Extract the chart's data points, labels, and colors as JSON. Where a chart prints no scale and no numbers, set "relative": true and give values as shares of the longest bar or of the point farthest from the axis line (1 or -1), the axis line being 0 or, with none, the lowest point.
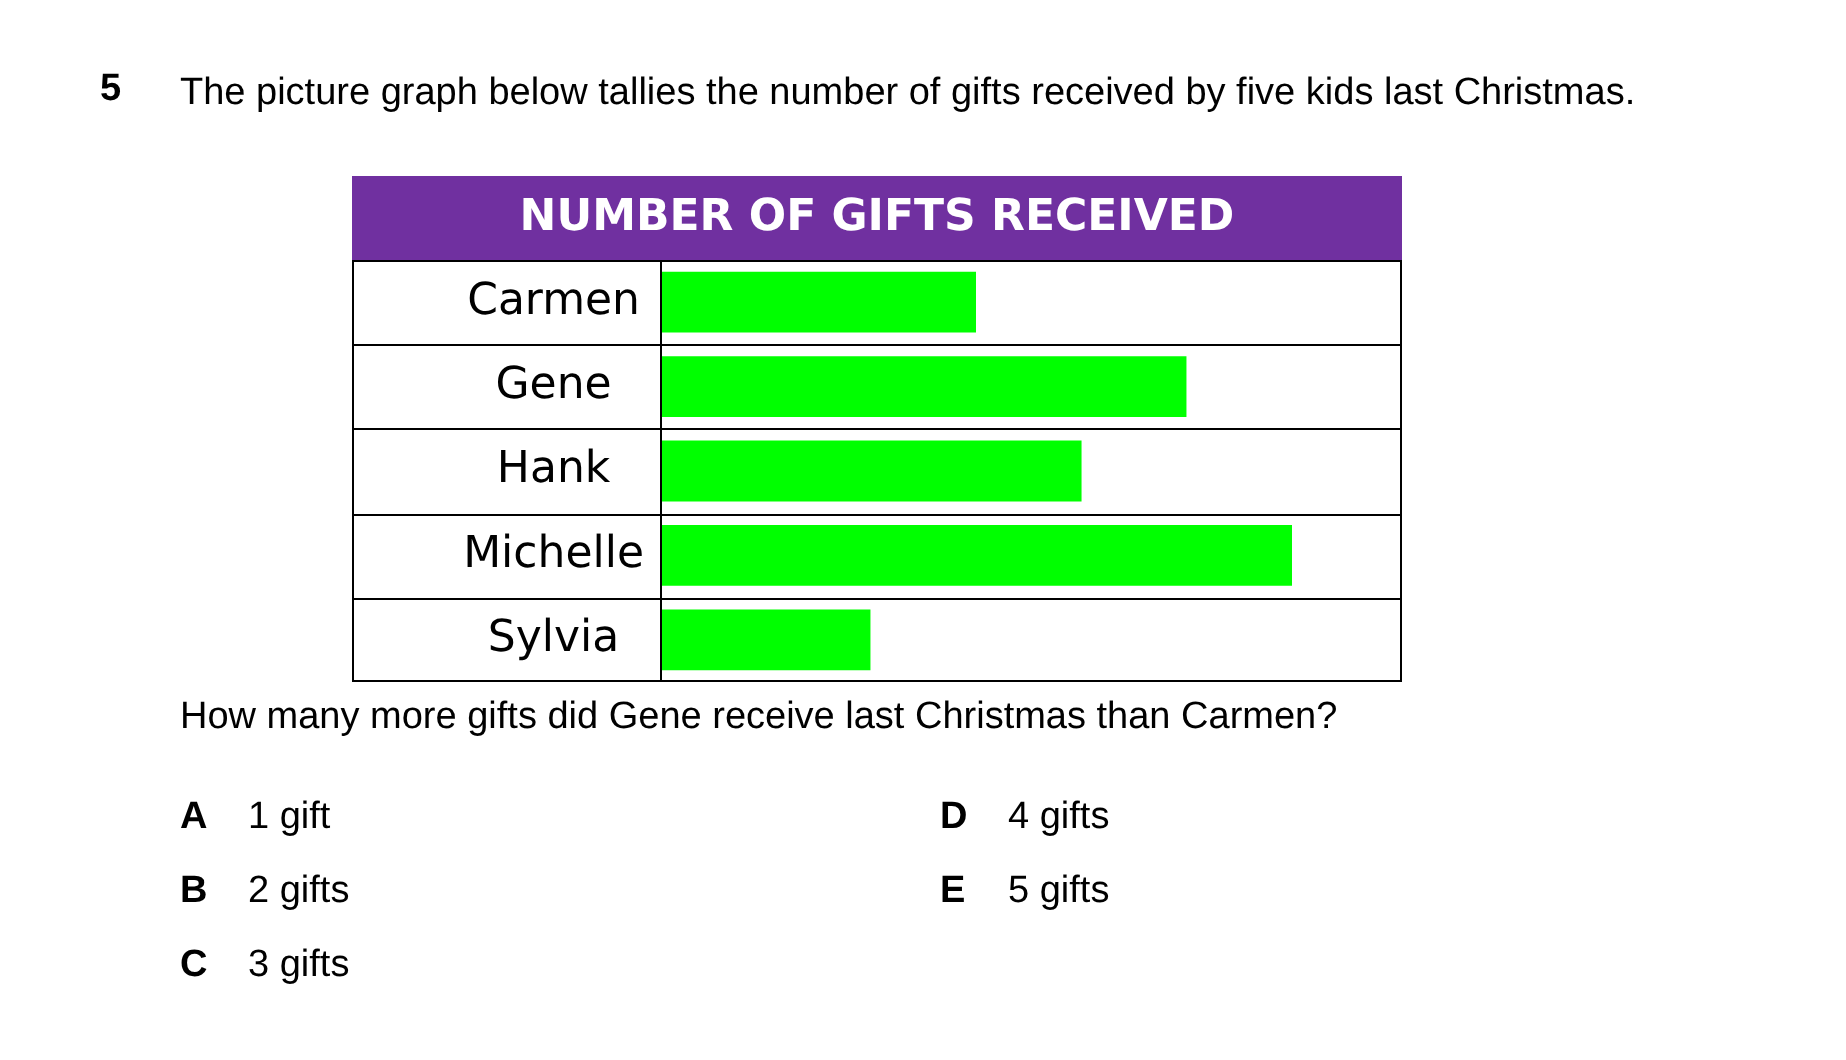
{
  "chart_data": {
    "type": "bar",
    "orientation": "horizontal",
    "relative": true,
    "title": "NUMBER OF GIFTS RECEIVED",
    "categories": [
      "Carmen",
      "Gene",
      "Hank",
      "Michelle",
      "Sylvia"
    ],
    "values": [
      0.5,
      0.833,
      0.667,
      1,
      0.333
    ],
    "color": "#00ff00",
    "legend": false,
    "annotations": [
      "5",
      "The picture graph below tallies the number of gifts received by five kids last Christmas.",
      "How many more gifts did Gene receive last Christmas than Carmen?",
      "A",
      "1 gift",
      "B",
      "2 gifts",
      "C",
      "3 gifts",
      "D",
      "4 gifts",
      "E",
      "5 gifts"
    ]
  }
}
